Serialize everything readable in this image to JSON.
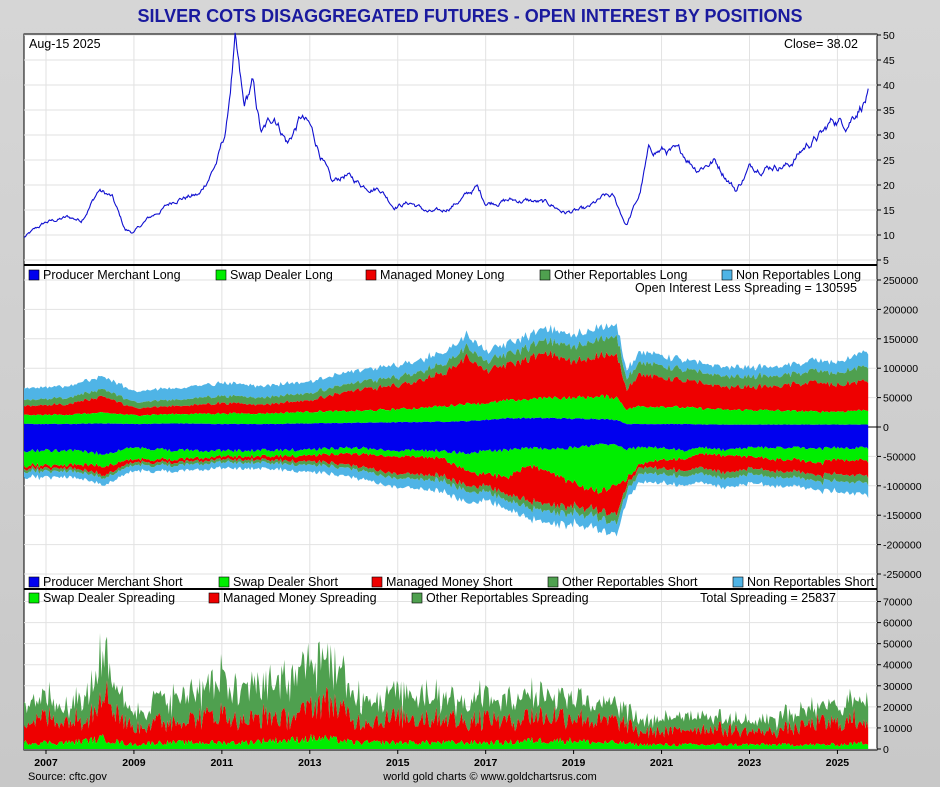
{
  "title": "SILVER COTS DISAGGREGATED FUTURES - OPEN INTEREST BY POSITIONS",
  "footer": {
    "source": "Source: cftc.gov",
    "credit": "world gold charts © www.goldchartsrus.com"
  },
  "colors": {
    "title": "#1a1a9e",
    "price_line": "#1010d0",
    "producer_merchant": "#0000ee",
    "swap_dealer": "#00ee00",
    "managed_money": "#ee0000",
    "other_reportables": "#4fa04f",
    "non_reportables": "#4fb4e6"
  },
  "chart_data": [
    {
      "type": "line",
      "panel": "price",
      "date_label": "Aug-15  2025",
      "close_label": "Close= 38.02",
      "ylim": [
        5,
        50
      ],
      "yticks": [
        5,
        10,
        15,
        20,
        25,
        30,
        35,
        40,
        45,
        50
      ],
      "x_range": [
        2006.5,
        2025.9
      ],
      "series": [
        {
          "points": [
            [
              2006.5,
              9.5
            ],
            [
              2007.0,
              12.5
            ],
            [
              2007.5,
              13.5
            ],
            [
              2007.8,
              13.0
            ],
            [
              2008.2,
              19.0
            ],
            [
              2008.5,
              17.5
            ],
            [
              2008.8,
              11.0
            ],
            [
              2009.0,
              10.5
            ],
            [
              2009.3,
              13.0
            ],
            [
              2009.7,
              15.5
            ],
            [
              2010.0,
              17.5
            ],
            [
              2010.5,
              18.0
            ],
            [
              2010.9,
              25.0
            ],
            [
              2011.1,
              31.0
            ],
            [
              2011.3,
              48.5
            ],
            [
              2011.5,
              35.0
            ],
            [
              2011.7,
              40.0
            ],
            [
              2011.9,
              30.0
            ],
            [
              2012.2,
              34.0
            ],
            [
              2012.5,
              28.5
            ],
            [
              2012.8,
              33.5
            ],
            [
              2013.0,
              31.5
            ],
            [
              2013.3,
              25.0
            ],
            [
              2013.5,
              20.0
            ],
            [
              2013.8,
              22.0
            ],
            [
              2014.2,
              20.0
            ],
            [
              2014.6,
              19.5
            ],
            [
              2014.9,
              16.0
            ],
            [
              2015.3,
              16.5
            ],
            [
              2015.7,
              14.5
            ],
            [
              2016.0,
              14.5
            ],
            [
              2016.5,
              17.5
            ],
            [
              2016.8,
              19.5
            ],
            [
              2017.0,
              16.5
            ],
            [
              2017.5,
              17.0
            ],
            [
              2018.0,
              16.8
            ],
            [
              2018.5,
              16.0
            ],
            [
              2018.8,
              14.5
            ],
            [
              2019.3,
              15.0
            ],
            [
              2019.7,
              17.5
            ],
            [
              2019.9,
              17.5
            ],
            [
              2020.2,
              12.0
            ],
            [
              2020.5,
              18.0
            ],
            [
              2020.7,
              26.5
            ],
            [
              2021.0,
              27.0
            ],
            [
              2021.5,
              26.0
            ],
            [
              2021.8,
              23.5
            ],
            [
              2022.2,
              25.0
            ],
            [
              2022.7,
              19.0
            ],
            [
              2023.0,
              23.5
            ],
            [
              2023.5,
              24.0
            ],
            [
              2023.9,
              24.0
            ],
            [
              2024.3,
              28.0
            ],
            [
              2024.7,
              30.5
            ],
            [
              2024.9,
              33.0
            ],
            [
              2025.2,
              32.5
            ],
            [
              2025.5,
              36.0
            ],
            [
              2025.7,
              38.02
            ]
          ]
        }
      ]
    },
    {
      "type": "area",
      "panel": "open_interest_long_short",
      "annotation": "Open Interest Less Spreading = 130595",
      "ylim": [
        -250000,
        250000
      ],
      "yticks": [
        250000,
        200000,
        150000,
        100000,
        50000,
        0,
        -50000,
        -100000,
        -150000,
        -200000,
        -250000
      ],
      "x": [
        2006.5,
        2007.5,
        2008.3,
        2009.0,
        2010.0,
        2011.0,
        2012.0,
        2013.0,
        2014.0,
        2015.0,
        2016.0,
        2016.6,
        2017.0,
        2017.5,
        2018.0,
        2018.5,
        2019.0,
        2019.5,
        2020.0,
        2020.2,
        2020.5,
        2021.0,
        2021.5,
        2022.0,
        2022.5,
        2023.0,
        2023.5,
        2024.0,
        2024.5,
        2025.0,
        2025.7
      ],
      "long_series": [
        {
          "name": "Producer Merchant Long",
          "values": [
            5000,
            5000,
            6000,
            5000,
            6000,
            5000,
            5000,
            6000,
            7000,
            8000,
            9000,
            10000,
            12000,
            15000,
            15000,
            15000,
            14000,
            14000,
            12000,
            5000,
            5000,
            5000,
            5000,
            4000,
            4000,
            4000,
            4000,
            4000,
            4000,
            4000,
            4000
          ]
        },
        {
          "name": "Swap Dealer Long",
          "values": [
            15000,
            16000,
            18000,
            15000,
            16000,
            18000,
            18000,
            20000,
            20000,
            22000,
            26000,
            30000,
            28000,
            30000,
            32000,
            35000,
            35000,
            38000,
            38000,
            25000,
            30000,
            30000,
            28000,
            27000,
            25000,
            25000,
            24000,
            23000,
            22000,
            22000,
            25000
          ]
        },
        {
          "name": "Managed Money Long",
          "values": [
            15000,
            18000,
            28000,
            12000,
            14000,
            18000,
            15000,
            20000,
            35000,
            40000,
            55000,
            80000,
            55000,
            60000,
            70000,
            75000,
            60000,
            70000,
            70000,
            35000,
            55000,
            50000,
            45000,
            42000,
            38000,
            40000,
            40000,
            45000,
            50000,
            45000,
            50000
          ]
        },
        {
          "name": "Other Reportables Long",
          "values": [
            10000,
            11000,
            12000,
            10000,
            11000,
            12000,
            12000,
            12000,
            13000,
            14000,
            15000,
            18000,
            16000,
            18000,
            20000,
            22000,
            25000,
            28000,
            30000,
            18000,
            20000,
            20000,
            18000,
            18000,
            18000,
            18000,
            18000,
            18000,
            20000,
            20000,
            25000
          ]
        },
        {
          "name": "Non Reportables Long",
          "values": [
            20000,
            20000,
            22000,
            18000,
            20000,
            22000,
            20000,
            20000,
            20000,
            20000,
            20000,
            20000,
            18000,
            18000,
            20000,
            20000,
            20000,
            20000,
            20000,
            14000,
            18000,
            18000,
            16000,
            16000,
            16000,
            16000,
            16000,
            16000,
            18000,
            18000,
            26000
          ]
        }
      ],
      "short_series": [
        {
          "name": "Producer Merchant Short",
          "values": [
            -40000,
            -40000,
            -45000,
            -35000,
            -40000,
            -40000,
            -40000,
            -38000,
            -35000,
            -40000,
            -40000,
            -45000,
            -40000,
            -40000,
            -35000,
            -38000,
            -35000,
            -30000,
            -30000,
            -38000,
            -35000,
            -35000,
            -40000,
            -35000,
            -40000,
            -35000,
            -35000,
            -35000,
            -38000,
            -35000,
            -35000
          ]
        },
        {
          "name": "Swap Dealer Short",
          "values": [
            -25000,
            -25000,
            -20000,
            -20000,
            -15000,
            -10000,
            -10000,
            -10000,
            -10000,
            -10000,
            -12000,
            -30000,
            -40000,
            -45000,
            -30000,
            -40000,
            -60000,
            -80000,
            -70000,
            -50000,
            -30000,
            -20000,
            -15000,
            -10000,
            -10000,
            -15000,
            -20000,
            -20000,
            -25000,
            -20000,
            -22000
          ]
        },
        {
          "name": "Managed Money Short",
          "values": [
            -5000,
            -5000,
            -15000,
            -5000,
            -5000,
            -5000,
            -6000,
            -10000,
            -20000,
            -30000,
            -30000,
            -25000,
            -20000,
            -30000,
            -60000,
            -55000,
            -40000,
            -30000,
            -50000,
            -10000,
            -5000,
            -15000,
            -20000,
            -25000,
            -30000,
            -20000,
            -20000,
            -20000,
            -20000,
            -25000,
            -25000
          ]
        },
        {
          "name": "Other Reportables Short",
          "values": [
            -5000,
            -5000,
            -5000,
            -5000,
            -5000,
            -5000,
            -5000,
            -6000,
            -6000,
            -8000,
            -8000,
            -10000,
            -10000,
            -10000,
            -12000,
            -12000,
            -12000,
            -12000,
            -15000,
            -10000,
            -10000,
            -10000,
            -10000,
            -10000,
            -10000,
            -10000,
            -10000,
            -10000,
            -10000,
            -12000,
            -12000
          ]
        },
        {
          "name": "Non Reportables Short",
          "values": [
            -10000,
            -10000,
            -12000,
            -10000,
            -10000,
            -10000,
            -10000,
            -12000,
            -14000,
            -15000,
            -18000,
            -20000,
            -15000,
            -15000,
            -18000,
            -20000,
            -18000,
            -20000,
            -20000,
            -15000,
            -15000,
            -15000,
            -15000,
            -15000,
            -15000,
            -15000,
            -15000,
            -15000,
            -15000,
            -18000,
            -20000
          ]
        }
      ]
    },
    {
      "type": "area",
      "panel": "spreading",
      "annotation": "Total Spreading = 25837",
      "ylim": [
        0,
        75000
      ],
      "yticks": [
        0,
        10000,
        20000,
        30000,
        40000,
        50000,
        60000,
        70000
      ],
      "x": [
        2006.5,
        2007.0,
        2007.5,
        2008.0,
        2008.3,
        2008.7,
        2009.0,
        2009.5,
        2010.0,
        2010.5,
        2011.0,
        2011.5,
        2012.0,
        2012.5,
        2013.0,
        2013.3,
        2013.7,
        2014.0,
        2014.5,
        2015.0,
        2015.5,
        2016.0,
        2016.5,
        2017.0,
        2017.5,
        2018.0,
        2018.5,
        2019.0,
        2019.5,
        2020.0,
        2020.5,
        2021.0,
        2021.5,
        2022.0,
        2022.5,
        2023.0,
        2023.5,
        2024.0,
        2024.5,
        2025.0,
        2025.7
      ],
      "xticks": [
        "2007",
        "2009",
        "2011",
        "2013",
        "2015",
        "2017",
        "2019",
        "2021",
        "2023",
        "2025"
      ],
      "series": [
        {
          "name": "Swap Dealer Spreading",
          "values": [
            3000,
            3000,
            3000,
            4000,
            5000,
            3000,
            2000,
            3000,
            3000,
            3000,
            3000,
            3000,
            4000,
            4000,
            5000,
            5000,
            4000,
            3000,
            3000,
            3000,
            3000,
            3000,
            3000,
            3000,
            3000,
            4000,
            4000,
            4000,
            3000,
            3000,
            2000,
            2000,
            2000,
            2000,
            2000,
            2000,
            2000,
            2000,
            2000,
            2000,
            3000
          ]
        },
        {
          "name": "Managed Money Spreading",
          "values": [
            10000,
            12000,
            10000,
            12000,
            25000,
            12000,
            8000,
            10000,
            10000,
            12000,
            14000,
            10000,
            12000,
            10000,
            15000,
            18000,
            15000,
            10000,
            10000,
            12000,
            12000,
            12000,
            10000,
            12000,
            10000,
            12000,
            12000,
            12000,
            10000,
            10000,
            6000,
            6000,
            7000,
            8000,
            7000,
            6000,
            6000,
            8000,
            10000,
            10000,
            12000
          ]
        },
        {
          "name": "Other Reportables Spreading",
          "values": [
            8000,
            10000,
            8000,
            12000,
            22000,
            10000,
            8000,
            10000,
            12000,
            14000,
            16000,
            14000,
            16000,
            18000,
            20000,
            22000,
            16000,
            12000,
            10000,
            12000,
            12000,
            10000,
            9000,
            10000,
            9000,
            10000,
            10000,
            10000,
            8000,
            8000,
            5000,
            6000,
            6000,
            6000,
            5000,
            5000,
            6000,
            6000,
            8000,
            8000,
            10000
          ]
        }
      ]
    }
  ]
}
